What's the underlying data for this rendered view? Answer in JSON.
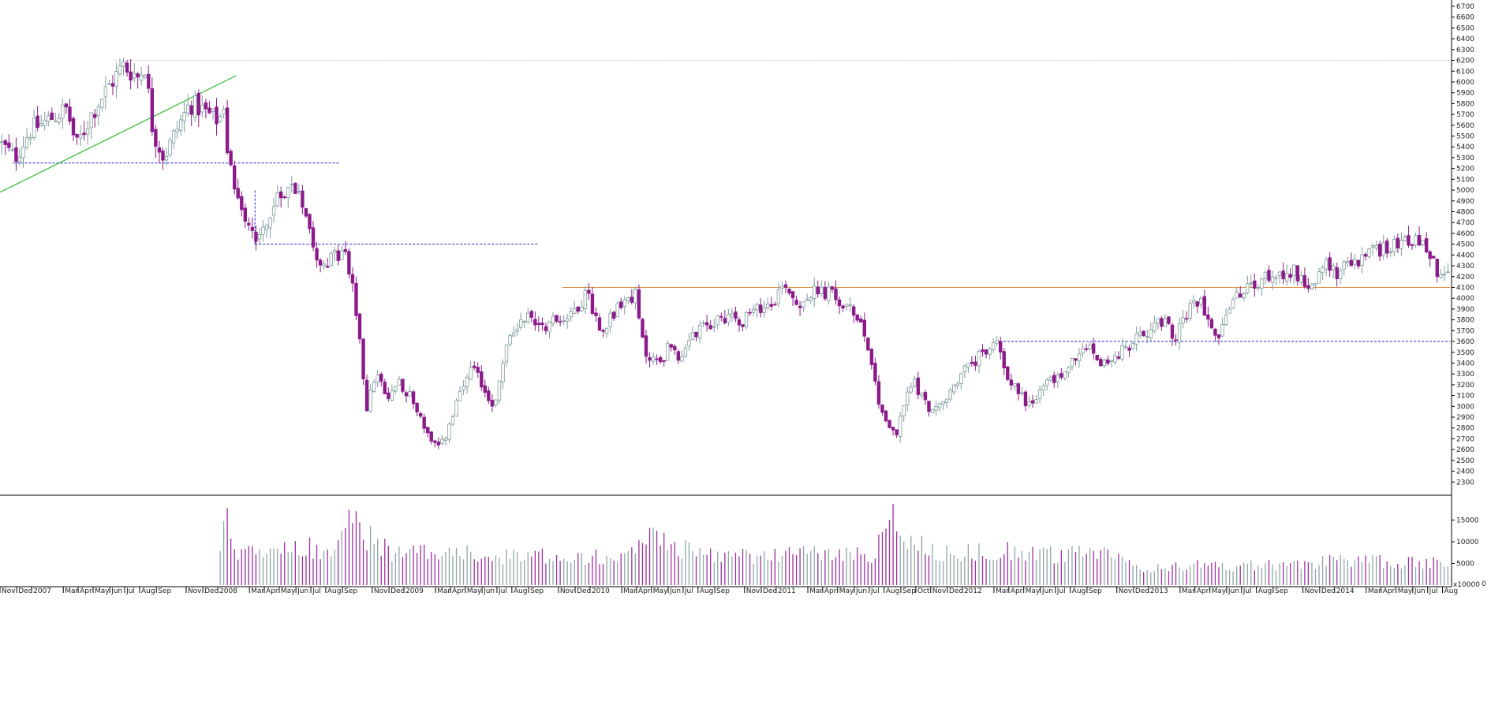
{
  "chart_data": {
    "type": "candlestick",
    "title": "",
    "xlabel": "",
    "ylabel": "",
    "ylim": [
      2200,
      6700
    ],
    "y_ticks": [
      2300,
      2400,
      2500,
      2600,
      2700,
      2800,
      2900,
      3000,
      3100,
      3200,
      3300,
      3400,
      3500,
      3600,
      3700,
      3800,
      3900,
      4000,
      4100,
      4200,
      4300,
      4400,
      4500,
      4600,
      4700,
      4800,
      4900,
      5000,
      5100,
      5200,
      5300,
      5400,
      5500,
      5600,
      5700,
      5800,
      5900,
      6000,
      6100,
      6200,
      6300,
      6400,
      6500,
      6600,
      6700
    ],
    "grid": false,
    "x_range": [
      2006.83,
      2014.62
    ],
    "price_anchors": [
      [
        2006.83,
        5450
      ],
      [
        2006.92,
        5300
      ],
      [
        2007.0,
        5550
      ],
      [
        2007.1,
        5650
      ],
      [
        2007.2,
        5750
      ],
      [
        2007.25,
        5400
      ],
      [
        2007.33,
        5700
      ],
      [
        2007.42,
        5950
      ],
      [
        2007.5,
        6150
      ],
      [
        2007.58,
        6050
      ],
      [
        2007.62,
        6150
      ],
      [
        2007.66,
        5550
      ],
      [
        2007.72,
        5300
      ],
      [
        2007.8,
        5600
      ],
      [
        2007.86,
        5800
      ],
      [
        2007.92,
        5750
      ],
      [
        2008.0,
        5650
      ],
      [
        2008.04,
        5700
      ],
      [
        2008.06,
        5300
      ],
      [
        2008.1,
        5050
      ],
      [
        2008.15,
        4800
      ],
      [
        2008.22,
        4550
      ],
      [
        2008.3,
        4800
      ],
      [
        2008.38,
        5050
      ],
      [
        2008.45,
        5000
      ],
      [
        2008.5,
        4700
      ],
      [
        2008.55,
        4350
      ],
      [
        2008.62,
        4350
      ],
      [
        2008.68,
        4450
      ],
      [
        2008.73,
        4200
      ],
      [
        2008.77,
        3600
      ],
      [
        2008.81,
        3000
      ],
      [
        2008.86,
        3300
      ],
      [
        2008.92,
        3050
      ],
      [
        2008.98,
        3250
      ],
      [
        2009.04,
        3100
      ],
      [
        2009.1,
        2900
      ],
      [
        2009.16,
        2650
      ],
      [
        2009.2,
        2600
      ],
      [
        2009.25,
        2800
      ],
      [
        2009.32,
        3150
      ],
      [
        2009.38,
        3350
      ],
      [
        2009.44,
        3150
      ],
      [
        2009.5,
        3000
      ],
      [
        2009.55,
        3500
      ],
      [
        2009.6,
        3700
      ],
      [
        2009.66,
        3850
      ],
      [
        2009.75,
        3750
      ],
      [
        2009.83,
        3800
      ],
      [
        2009.9,
        3850
      ],
      [
        2010.0,
        4050
      ],
      [
        2010.06,
        3700
      ],
      [
        2010.15,
        3900
      ],
      [
        2010.25,
        4050
      ],
      [
        2010.3,
        3500
      ],
      [
        2010.38,
        3400
      ],
      [
        2010.45,
        3600
      ],
      [
        2010.5,
        3400
      ],
      [
        2010.56,
        3650
      ],
      [
        2010.65,
        3750
      ],
      [
        2010.75,
        3850
      ],
      [
        2010.83,
        3800
      ],
      [
        2010.92,
        3900
      ],
      [
        2011.0,
        4000
      ],
      [
        2011.06,
        4150
      ],
      [
        2011.12,
        3950
      ],
      [
        2011.2,
        4050
      ],
      [
        2011.3,
        4050
      ],
      [
        2011.38,
        3900
      ],
      [
        2011.45,
        3850
      ],
      [
        2011.5,
        3600
      ],
      [
        2011.56,
        3050
      ],
      [
        2011.62,
        2800
      ],
      [
        2011.66,
        2750
      ],
      [
        2011.7,
        3050
      ],
      [
        2011.75,
        3250
      ],
      [
        2011.8,
        3050
      ],
      [
        2011.86,
        2950
      ],
      [
        2011.92,
        3050
      ],
      [
        2012.0,
        3300
      ],
      [
        2012.1,
        3450
      ],
      [
        2012.2,
        3600
      ],
      [
        2012.25,
        3300
      ],
      [
        2012.3,
        3150
      ],
      [
        2012.38,
        3000
      ],
      [
        2012.45,
        3200
      ],
      [
        2012.55,
        3300
      ],
      [
        2012.62,
        3450
      ],
      [
        2012.7,
        3550
      ],
      [
        2012.75,
        3400
      ],
      [
        2012.83,
        3450
      ],
      [
        2012.9,
        3550
      ],
      [
        2013.0,
        3700
      ],
      [
        2013.08,
        3800
      ],
      [
        2013.15,
        3650
      ],
      [
        2013.2,
        3800
      ],
      [
        2013.28,
        4000
      ],
      [
        2013.33,
        3850
      ],
      [
        2013.38,
        3650
      ],
      [
        2013.45,
        3950
      ],
      [
        2013.55,
        4100
      ],
      [
        2013.62,
        4150
      ],
      [
        2013.7,
        4250
      ],
      [
        2013.8,
        4250
      ],
      [
        2013.88,
        4100
      ],
      [
        2013.95,
        4300
      ],
      [
        2014.02,
        4250
      ],
      [
        2014.1,
        4300
      ],
      [
        2014.18,
        4400
      ],
      [
        2014.25,
        4450
      ],
      [
        2014.3,
        4500
      ],
      [
        2014.4,
        4550
      ],
      [
        2014.47,
        4500
      ],
      [
        2014.52,
        4400
      ],
      [
        2014.56,
        4250
      ],
      [
        2014.6,
        4200
      ]
    ],
    "x_labels": [
      {
        "text": "Nov",
        "t": 2006.83
      },
      {
        "text": "Dec",
        "t": 2006.92
      },
      {
        "text": "2007",
        "t": 2007.0
      },
      {
        "text": "Mar",
        "t": 2007.17
      },
      {
        "text": "Apr",
        "t": 2007.25
      },
      {
        "text": "May",
        "t": 2007.33
      },
      {
        "text": "Jun",
        "t": 2007.42
      },
      {
        "text": "Jul",
        "t": 2007.5
      },
      {
        "text": "Aug",
        "t": 2007.58
      },
      {
        "text": "Sep",
        "t": 2007.67
      },
      {
        "text": "Nov",
        "t": 2007.83
      },
      {
        "text": "Dec",
        "t": 2007.92
      },
      {
        "text": "2008",
        "t": 2008.0
      },
      {
        "text": "Mar",
        "t": 2008.17
      },
      {
        "text": "Apr",
        "t": 2008.25
      },
      {
        "text": "May",
        "t": 2008.33
      },
      {
        "text": "Jun",
        "t": 2008.42
      },
      {
        "text": "Jul",
        "t": 2008.5
      },
      {
        "text": "Aug",
        "t": 2008.58
      },
      {
        "text": "Sep",
        "t": 2008.67
      },
      {
        "text": "Nov",
        "t": 2008.83
      },
      {
        "text": "Dec",
        "t": 2008.92
      },
      {
        "text": "2009",
        "t": 2009.0
      },
      {
        "text": "Mar",
        "t": 2009.17
      },
      {
        "text": "Apr",
        "t": 2009.25
      },
      {
        "text": "May",
        "t": 2009.33
      },
      {
        "text": "Jun",
        "t": 2009.42
      },
      {
        "text": "Jul",
        "t": 2009.5
      },
      {
        "text": "Aug",
        "t": 2009.58
      },
      {
        "text": "Sep",
        "t": 2009.67
      },
      {
        "text": "Nov",
        "t": 2009.83
      },
      {
        "text": "Dec",
        "t": 2009.92
      },
      {
        "text": "2010",
        "t": 2010.0
      },
      {
        "text": "Mar",
        "t": 2010.17
      },
      {
        "text": "Apr",
        "t": 2010.25
      },
      {
        "text": "May",
        "t": 2010.33
      },
      {
        "text": "Jun",
        "t": 2010.42
      },
      {
        "text": "Jul",
        "t": 2010.5
      },
      {
        "text": "Aug",
        "t": 2010.58
      },
      {
        "text": "Sep",
        "t": 2010.67
      },
      {
        "text": "Nov",
        "t": 2010.83
      },
      {
        "text": "Dec",
        "t": 2010.92
      },
      {
        "text": "2011",
        "t": 2011.0
      },
      {
        "text": "Mar",
        "t": 2011.17
      },
      {
        "text": "Apr",
        "t": 2011.25
      },
      {
        "text": "May",
        "t": 2011.33
      },
      {
        "text": "Jun",
        "t": 2011.42
      },
      {
        "text": "Jul",
        "t": 2011.5
      },
      {
        "text": "Aug",
        "t": 2011.58
      },
      {
        "text": "Sep",
        "t": 2011.67
      },
      {
        "text": "Oct",
        "t": 2011.75
      },
      {
        "text": "Nov",
        "t": 2011.83
      },
      {
        "text": "Dec",
        "t": 2011.92
      },
      {
        "text": "2012",
        "t": 2012.0
      },
      {
        "text": "Mar",
        "t": 2012.17
      },
      {
        "text": "Apr",
        "t": 2012.25
      },
      {
        "text": "May",
        "t": 2012.33
      },
      {
        "text": "Jun",
        "t": 2012.42
      },
      {
        "text": "Jul",
        "t": 2012.5
      },
      {
        "text": "Aug",
        "t": 2012.58
      },
      {
        "text": "Sep",
        "t": 2012.67
      },
      {
        "text": "Nov",
        "t": 2012.83
      },
      {
        "text": "Dec",
        "t": 2012.92
      },
      {
        "text": "2013",
        "t": 2013.0
      },
      {
        "text": "Mar",
        "t": 2013.17
      },
      {
        "text": "Apr",
        "t": 2013.25
      },
      {
        "text": "May",
        "t": 2013.33
      },
      {
        "text": "Jun",
        "t": 2013.42
      },
      {
        "text": "Jul",
        "t": 2013.5
      },
      {
        "text": "Aug",
        "t": 2013.58
      },
      {
        "text": "Sep",
        "t": 2013.67
      },
      {
        "text": "Nov",
        "t": 2013.83
      },
      {
        "text": "Dec",
        "t": 2013.92
      },
      {
        "text": "2014",
        "t": 2014.0
      },
      {
        "text": "Mar",
        "t": 2014.17
      },
      {
        "text": "Apr",
        "t": 2014.25
      },
      {
        "text": "May",
        "t": 2014.33
      },
      {
        "text": "Jun",
        "t": 2014.42
      },
      {
        "text": "Jul",
        "t": 2014.5
      },
      {
        "text": "Aug",
        "t": 2014.58
      }
    ],
    "annotations": [
      {
        "type": "hline",
        "style": "dashed",
        "color": "#cfcfcf",
        "y": 6200,
        "t_start": 2007.45,
        "t_end": 2014.62
      },
      {
        "type": "hline",
        "style": "dashed",
        "color": "#2222cc",
        "y": 5250,
        "t_start": 2006.9,
        "t_end": 2008.65
      },
      {
        "type": "hline",
        "style": "dashed",
        "color": "#2222cc",
        "y": 4500,
        "t_start": 2008.2,
        "t_end": 2009.72
      },
      {
        "type": "hline",
        "style": "solid",
        "color": "#e08a3a",
        "y": 4100,
        "t_start": 2009.85,
        "t_end": 2014.62
      },
      {
        "type": "hline",
        "style": "dashed",
        "color": "#2222cc",
        "y": 3600,
        "t_start": 2012.2,
        "t_end": 2014.62
      },
      {
        "type": "trend",
        "style": "solid",
        "color": "#33bb33",
        "t1": 2006.83,
        "y1": 4980,
        "t2": 2008.1,
        "y2": 6060
      }
    ],
    "volume": {
      "start": 2008.0,
      "values_anchors": [
        [
          2008.0,
          9000
        ],
        [
          2008.05,
          16000
        ],
        [
          2008.1,
          8000
        ],
        [
          2008.3,
          7000
        ],
        [
          2008.45,
          9000
        ],
        [
          2008.6,
          8000
        ],
        [
          2008.7,
          15000
        ],
        [
          2008.8,
          11000
        ],
        [
          2008.9,
          8000
        ],
        [
          2009.0,
          7000
        ],
        [
          2009.2,
          8500
        ],
        [
          2009.4,
          6500
        ],
        [
          2009.6,
          6500
        ],
        [
          2009.8,
          7000
        ],
        [
          2010.0,
          6500
        ],
        [
          2010.2,
          8000
        ],
        [
          2010.35,
          12000
        ],
        [
          2010.5,
          8000
        ],
        [
          2010.7,
          7000
        ],
        [
          2010.9,
          6500
        ],
        [
          2011.1,
          7500
        ],
        [
          2011.3,
          7000
        ],
        [
          2011.5,
          7000
        ],
        [
          2011.62,
          16000
        ],
        [
          2011.7,
          10000
        ],
        [
          2011.9,
          7500
        ],
        [
          2012.1,
          7500
        ],
        [
          2012.3,
          8000
        ],
        [
          2012.5,
          7000
        ],
        [
          2012.7,
          7000
        ],
        [
          2012.9,
          7000
        ],
        [
          2012.95,
          3500
        ],
        [
          2013.2,
          4500
        ],
        [
          2013.4,
          4500
        ],
        [
          2013.6,
          4500
        ],
        [
          2013.8,
          5000
        ],
        [
          2014.0,
          5500
        ],
        [
          2014.2,
          5500
        ],
        [
          2014.4,
          5000
        ],
        [
          2014.6,
          5500
        ]
      ],
      "ylim": [
        0,
        20000
      ],
      "y_ticks": [
        5000,
        10000,
        15000
      ],
      "y_tick_labels": [
        "5000",
        "10000",
        "15000"
      ],
      "axis_note": "x10000",
      "zero_label": "0"
    },
    "colors": {
      "up": "#7f9b9b",
      "down": "#8b1a8b",
      "volume_up": "#8fa6a6",
      "volume_down": "#9b2fa0"
    }
  }
}
